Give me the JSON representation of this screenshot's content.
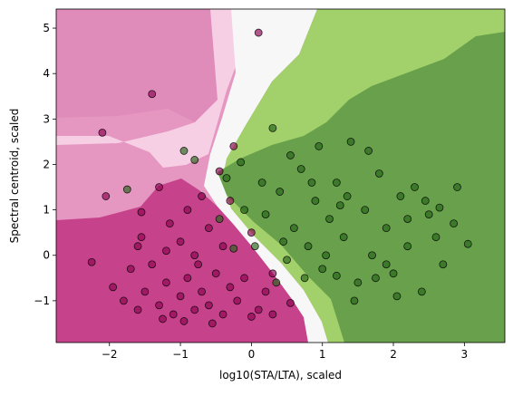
{
  "chart_data": {
    "type": "scatter",
    "x_label": "log10(STA/LTA), scaled",
    "y_label": "Spectral centroid, scaled",
    "xlim": [
      -2.75,
      3.57
    ],
    "ylim": [
      -1.92,
      5.42
    ],
    "xticks": [
      {
        "value": -2,
        "label": "−2"
      },
      {
        "value": -1,
        "label": "−1"
      },
      0,
      1,
      2,
      3
    ],
    "yticks": [
      {
        "value": -1,
        "label": "−1"
      },
      0,
      1,
      2,
      3,
      4,
      5
    ],
    "grid": false,
    "series": [
      {
        "color": "#8e0152",
        "x": [
          -2.1,
          -1.4,
          0.1,
          -2.05,
          -2.25,
          -1.55,
          -1.95,
          -1.8,
          -1.6,
          -1.5,
          -1.3,
          -1.2,
          -1.1,
          -1.0,
          -0.9,
          -0.8,
          -0.7,
          -0.6,
          -0.5,
          -0.4,
          -0.3,
          -0.2,
          -0.1,
          0.1,
          0.2,
          0.3,
          0.55,
          -1.4,
          -1.2,
          -1.0,
          -0.8,
          -0.6,
          -0.4,
          -0.9,
          -1.15,
          -1.3,
          -0.7,
          -0.25,
          -0.45,
          -1.55,
          -1.7,
          -1.25,
          -0.95,
          -0.55,
          0.0,
          0.3,
          0.0,
          -0.3,
          -1.6,
          -0.75
        ],
        "values": [
          2.7,
          3.55,
          4.9,
          1.3,
          -0.15,
          0.95,
          -0.7,
          -1.0,
          -1.2,
          -0.8,
          -1.1,
          -0.6,
          -1.3,
          -0.9,
          -0.5,
          -1.2,
          -0.8,
          -1.1,
          -0.4,
          -1.3,
          -0.7,
          -1.0,
          -0.5,
          -1.2,
          -0.8,
          -1.3,
          -1.05,
          -0.2,
          0.1,
          0.3,
          0.0,
          0.6,
          0.2,
          1.0,
          0.7,
          1.5,
          1.3,
          2.4,
          1.85,
          0.4,
          -0.3,
          -1.4,
          -1.45,
          -1.5,
          -1.35,
          -0.4,
          0.5,
          1.2,
          0.2,
          -0.2
        ]
      },
      {
        "color": "#276419",
        "x": [
          -1.75,
          -0.95,
          -0.8,
          -0.35,
          -0.15,
          0.3,
          0.5,
          0.05,
          0.2,
          0.4,
          0.6,
          0.7,
          0.8,
          0.9,
          1.0,
          1.1,
          1.2,
          1.3,
          1.4,
          1.5,
          1.6,
          1.7,
          1.8,
          1.9,
          2.0,
          2.1,
          2.2,
          2.3,
          2.4,
          2.5,
          2.6,
          2.65,
          2.85,
          2.9,
          3.05,
          2.05,
          1.45,
          1.2,
          0.95,
          0.55,
          0.15,
          -0.1,
          -0.45,
          0.35,
          0.75,
          1.05,
          1.35,
          1.65,
          1.9,
          2.2,
          0.45,
          0.85,
          1.25,
          -0.25,
          1.75,
          2.45,
          2.7
        ],
        "values": [
          1.45,
          2.3,
          2.1,
          1.7,
          2.05,
          2.8,
          -0.1,
          0.2,
          0.9,
          1.4,
          0.6,
          1.9,
          0.2,
          1.2,
          -0.3,
          0.8,
          1.6,
          0.4,
          2.5,
          -0.6,
          1.0,
          0.0,
          1.8,
          0.6,
          -0.4,
          1.3,
          0.2,
          1.5,
          -0.8,
          0.9,
          0.4,
          1.05,
          0.7,
          1.5,
          0.25,
          -0.9,
          -1.0,
          -0.45,
          2.4,
          2.2,
          1.6,
          1.0,
          0.8,
          -0.6,
          -0.5,
          0.0,
          1.3,
          2.3,
          -0.2,
          0.8,
          0.3,
          1.6,
          1.1,
          0.15,
          -0.5,
          1.2,
          -0.2
        ]
      }
    ]
  }
}
